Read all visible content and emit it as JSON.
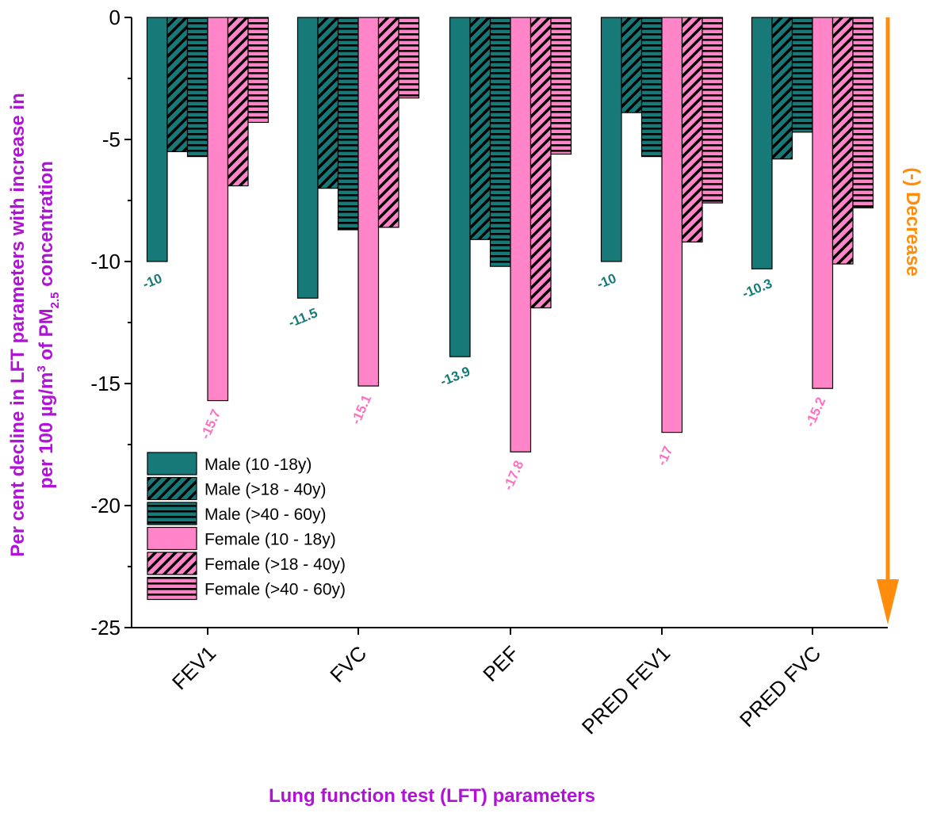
{
  "colors": {
    "male": "#177a78",
    "female": "#ff85c8",
    "male_label": "#177a78",
    "female_label": "#ff6ec0",
    "axis_title": "#b012d6",
    "decrease": "#ff8c0a"
  },
  "chart_data": {
    "type": "bar",
    "categories": [
      "FEV1",
      "FVC",
      "PEF",
      "PRED FEV1",
      "PRED FVC"
    ],
    "series": [
      {
        "name": "Male (10 -18y)",
        "values": [
          -10,
          -11.5,
          -13.9,
          -10,
          -10.3
        ],
        "pattern": "solid",
        "group": "male"
      },
      {
        "name": "Male (>18 - 40y)",
        "values": [
          -5.5,
          -7.0,
          -9.1,
          -3.9,
          -5.8
        ],
        "pattern": "diagonal",
        "group": "male"
      },
      {
        "name": "Male (>40 - 60y)",
        "values": [
          -5.7,
          -8.7,
          -10.2,
          -5.7,
          -4.7
        ],
        "pattern": "horizontal",
        "group": "male"
      },
      {
        "name": "Female (10 - 18y)",
        "values": [
          -15.7,
          -15.1,
          -17.8,
          -17,
          -15.2
        ],
        "pattern": "solid",
        "group": "female"
      },
      {
        "name": "Female (>18 - 40y)",
        "values": [
          -6.9,
          -8.6,
          -11.9,
          -9.2,
          -10.1
        ],
        "pattern": "diagonal",
        "group": "female"
      },
      {
        "name": "Female (>40 - 60y)",
        "values": [
          -4.3,
          -3.3,
          -5.6,
          -7.6,
          -7.8
        ],
        "pattern": "horizontal",
        "group": "female"
      }
    ],
    "data_labels": {
      "male": [
        "-10",
        "-11.5",
        "-13.9",
        "-10",
        "-10.3"
      ],
      "female": [
        "-15.7",
        "-15.1",
        "-17.8",
        "-17",
        "-15.2"
      ]
    },
    "ylim": [
      -25,
      0
    ],
    "yticks": [
      0,
      -5,
      -10,
      -15,
      -20,
      -25
    ],
    "ytick_labels": [
      "0",
      "-5",
      "-10",
      "-15",
      "-20",
      "-25"
    ],
    "xlabel": "Lung function test (LFT) parameters",
    "ylabel_line1": "Per cent decline in LFT parameters with increase in",
    "ylabel_line2_parts": [
      "per 100 µg/m",
      "3",
      " of PM",
      "2.5",
      " concentration"
    ],
    "annotation": "(-) Decrease",
    "legend_position": "bottom-left",
    "grid": false
  }
}
